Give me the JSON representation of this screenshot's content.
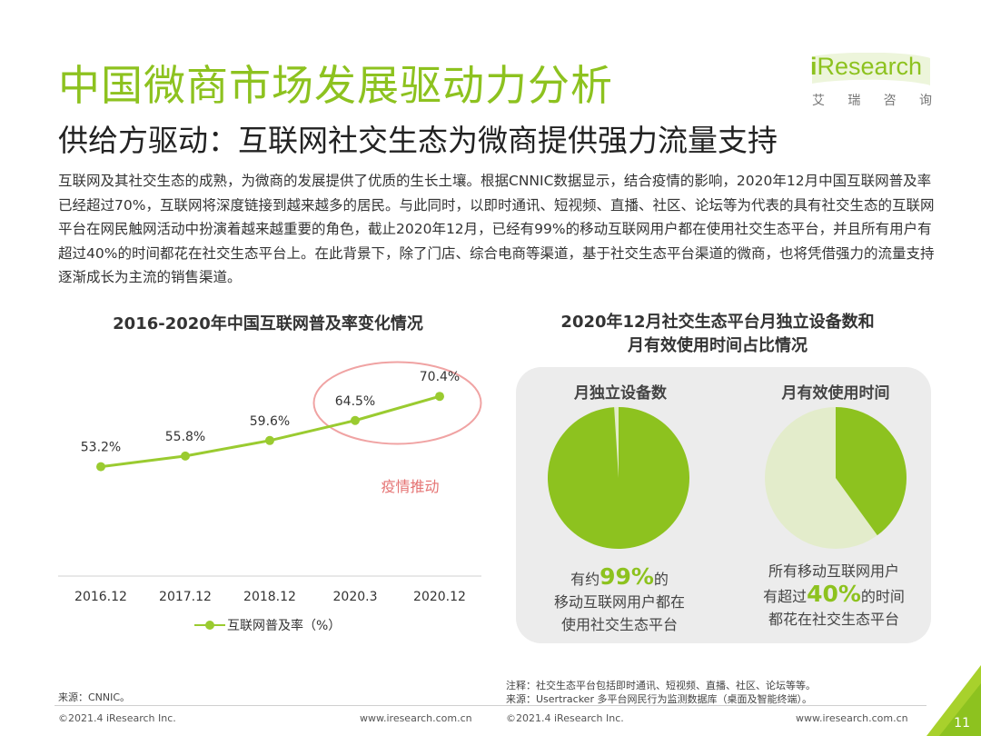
{
  "header": {
    "title": "中国微商市场发展驱动力分析",
    "subtitle": "供给方驱动：互联网社交生态为微商提供强力流量支持"
  },
  "logo": {
    "prefix": "i",
    "word": "Research",
    "cn": [
      "艾",
      "瑞",
      "咨",
      "询"
    ]
  },
  "body": {
    "paragraph": "互联网及其社交生态的成熟，为微商的发展提供了优质的生长土壤。根据CNNIC数据显示，结合疫情的影响，2020年12月中国互联网普及率已经超过70%，互联网将深度链接到越来越多的居民。与此同时，以即时通讯、短视频、直播、社区、论坛等为代表的具有社交生态的互联网平台在网民触网活动中扮演着越来越重要的角色，截止2020年12月，已经有99%的移动互联网用户都在使用社交生态平台，并且所有用户有超过40%的时间都花在社交生态平台上。在此背景下，除了门店、综合电商等渠道，基于社交生态平台渠道的微商，也将凭借强力的流量支持逐渐成长为主流的销售渠道。"
  },
  "colors": {
    "brand_green": "#8dc21f",
    "line_green": "#9acb30",
    "pie_light": "#e3eccb",
    "annotation_red": "#f0a3a3",
    "panel_bg": "#ececec"
  },
  "chart_data": [
    {
      "type": "line",
      "title": "2016-2020年中国互联网普及率变化情况",
      "categories": [
        "2016.12",
        "2017.12",
        "2018.12",
        "2020.3",
        "2020.12"
      ],
      "series": [
        {
          "name": "互联网普及率（%）",
          "values": [
            53.2,
            55.8,
            59.6,
            64.5,
            70.4
          ],
          "labels": [
            "53.2%",
            "55.8%",
            "59.6%",
            "64.5%",
            "70.4%"
          ]
        }
      ],
      "annotation": "疫情推动",
      "xlabel": "",
      "ylabel": "",
      "grid": false,
      "legend": "bottom"
    },
    {
      "type": "pie",
      "title": "2020年12月社交生态平台月独立设备数和月有效使用时间占比情况",
      "title_lines": [
        "2020年12月社交生态平台月独立设备数和",
        "月有效使用时间占比情况"
      ],
      "pies": [
        {
          "name": "月独立设备数",
          "value_percent": 99,
          "caption": [
            "有约",
            "99%",
            "的",
            "移动互联网用户都在",
            "使用社交生态平台"
          ]
        },
        {
          "name": "月有效使用时间",
          "value_percent": 40,
          "caption": [
            "所有移动互联网用户",
            "有超过",
            "40%",
            "的时间",
            "都花在社交生态平台"
          ]
        }
      ]
    }
  ],
  "notes": {
    "note_line": "注释：社交生态平台包括即时通讯、短视频、直播、社区、论坛等等。",
    "source_right": "来源：Usertracker 多平台网民行为监测数据库（桌面及智能终端）。",
    "source_left": "来源：CNNIC。"
  },
  "footer": {
    "copyright_left": "©2021.4 iResearch Inc.",
    "url_left": "www.iresearch.com.cn",
    "copyright_right": "©2021.4 iResearch Inc.",
    "url_right": "www.iresearch.com.cn",
    "page_number": "11"
  }
}
